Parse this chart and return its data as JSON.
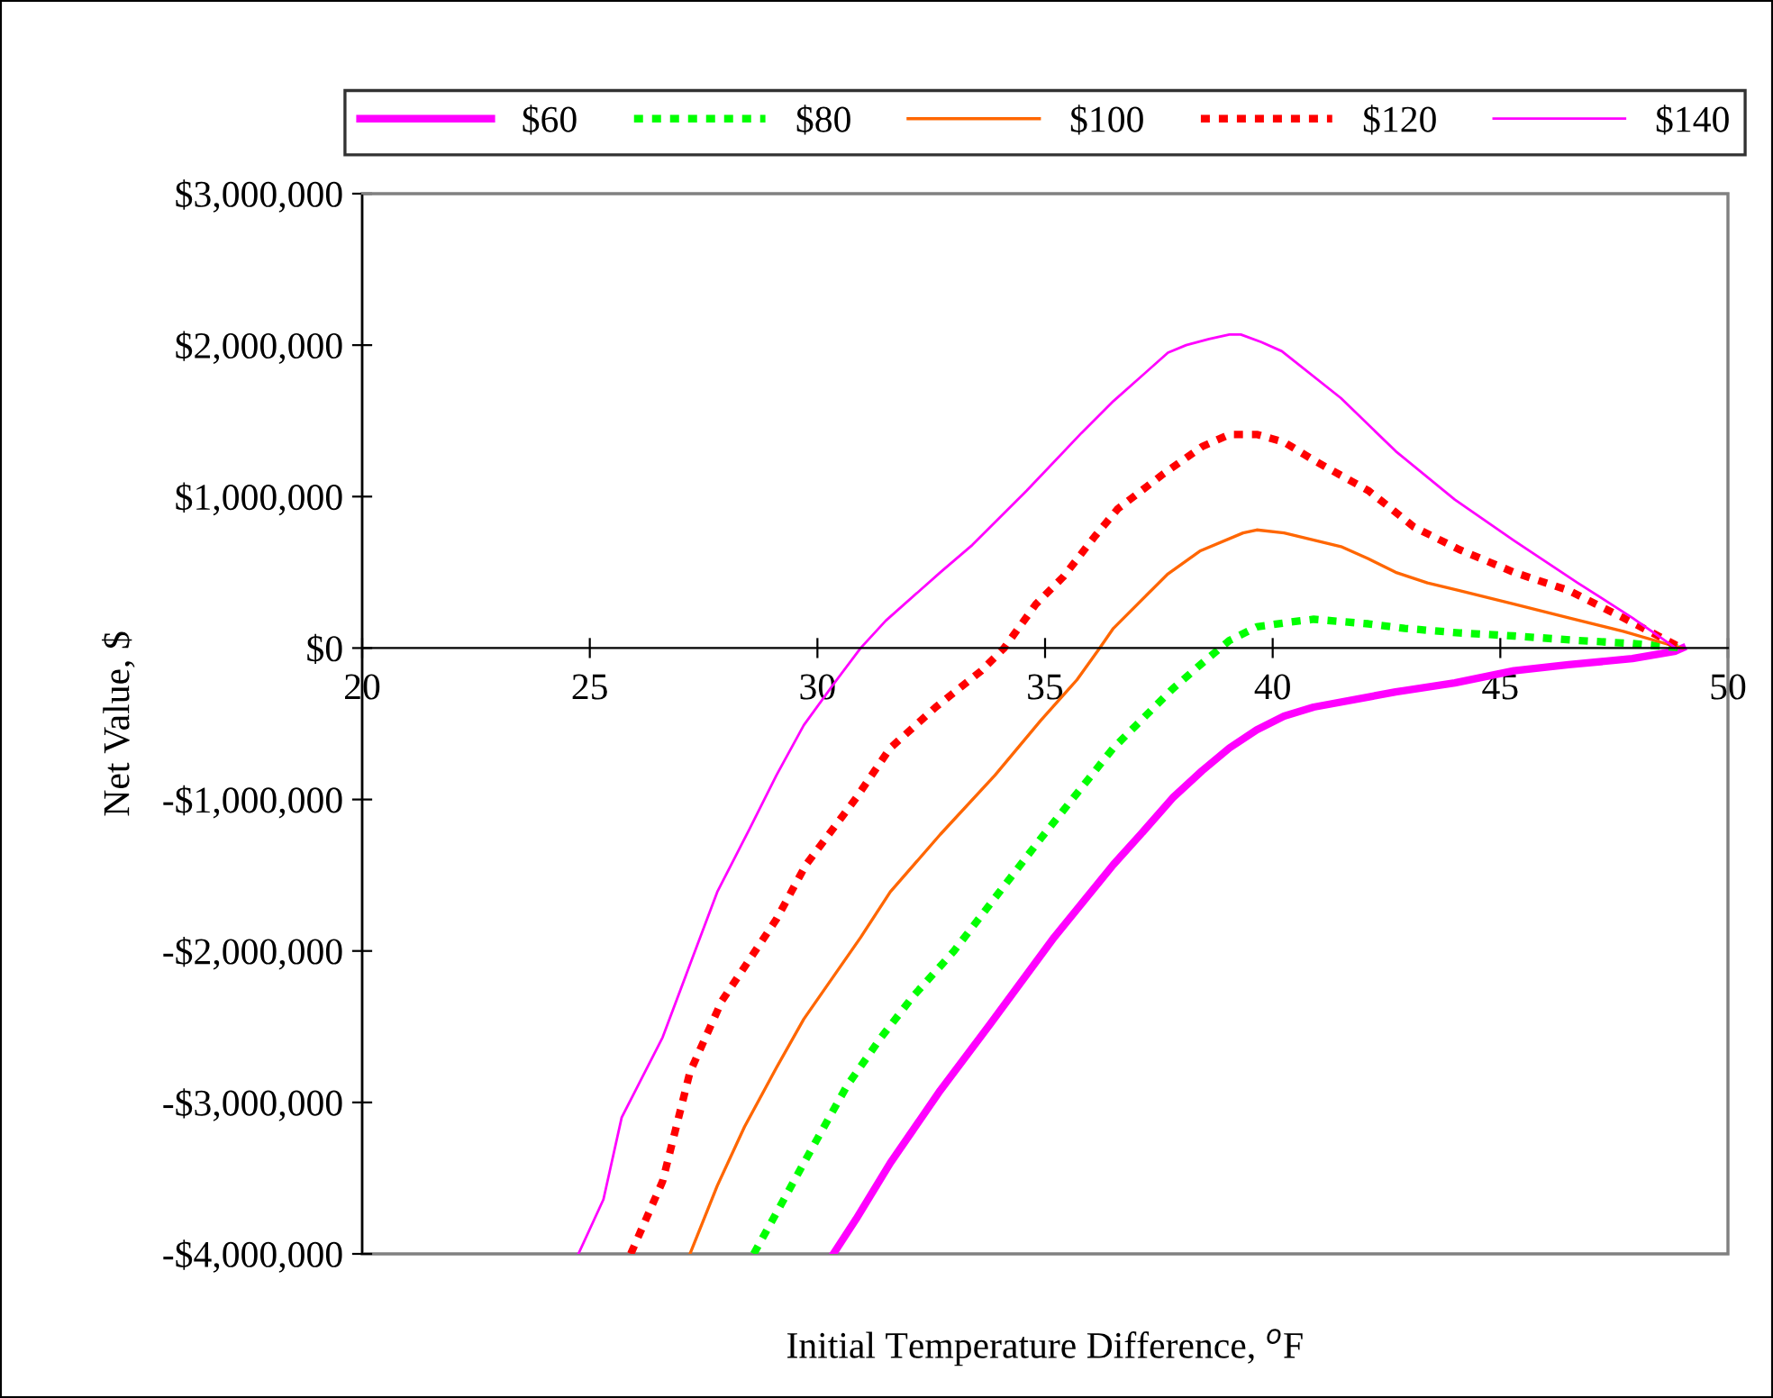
{
  "chart_data": {
    "type": "line",
    "xlabel": "Initial Temperature Difference, $^{o}$F",
    "ylabel": "Net Value, $",
    "xlim": [
      20,
      50
    ],
    "xticks": [
      20,
      25,
      30,
      35,
      40,
      45,
      50
    ],
    "ylim": [
      -4000000,
      3000000
    ],
    "yticks": [
      {
        "value": -4000000,
        "label": "-$4,000,000"
      },
      {
        "value": -3000000,
        "label": "-$3,000,000"
      },
      {
        "value": -2000000,
        "label": "-$2,000,000"
      },
      {
        "value": -1000000,
        "label": "-$1,000,000"
      },
      {
        "value": 0,
        "label": "$0"
      },
      {
        "value": 1000000,
        "label": "$1,000,000"
      },
      {
        "value": 2000000,
        "label": "$2,000,000"
      },
      {
        "value": 3000000,
        "label": "$3,000,000"
      }
    ],
    "grid": false,
    "legend": "top",
    "marker": "none",
    "series": [
      {
        "name": "$60",
        "color": "#ff00ff",
        "line_style": "solid",
        "x": [
          30.35,
          30.85,
          31.6,
          32.7,
          33.8,
          35.2,
          36.5,
          37.1,
          37.8,
          38.45,
          39.05,
          39.65,
          40.25,
          40.9,
          42.7,
          44.0,
          45.3,
          46.5,
          47.9,
          48.85,
          49.0
        ],
        "values": [
          -4000000,
          -3770000,
          -3400000,
          -2920000,
          -2480000,
          -1910000,
          -1430000,
          -1230000,
          -990000,
          -810000,
          -660000,
          -540000,
          -450000,
          -390000,
          -290000,
          -230000,
          -150000,
          -110000,
          -70000,
          -20000,
          0
        ]
      },
      {
        "name": "$80",
        "color": "#00ff00",
        "line_style": "dotted",
        "x": [
          28.6,
          29.1,
          29.7,
          30.65,
          31.4,
          32.1,
          33.0,
          34.0,
          34.9,
          35.7,
          36.5,
          37.0,
          37.8,
          38.45,
          39.05,
          39.65,
          40.35,
          40.9,
          42.1,
          42.9,
          44.1,
          45.3,
          46.7,
          47.9,
          49.0
        ],
        "values": [
          -4000000,
          -3730000,
          -3400000,
          -2890000,
          -2570000,
          -2300000,
          -2000000,
          -1610000,
          -1260000,
          -960000,
          -660000,
          -510000,
          -270000,
          -100000,
          50000,
          140000,
          170000,
          190000,
          160000,
          130000,
          100000,
          80000,
          50000,
          30000,
          0
        ]
      },
      {
        "name": "$100",
        "color": "#ff6600",
        "line_style": "solid",
        "x": [
          27.2,
          27.8,
          28.4,
          29.1,
          29.7,
          30.95,
          31.6,
          32.7,
          33.9,
          34.9,
          35.7,
          36.2,
          36.5,
          37.7,
          38.4,
          39.35,
          39.65,
          40.25,
          41.5,
          42.1,
          42.7,
          43.4,
          44.1,
          45.3,
          46.5,
          47.7,
          48.85,
          49.0
        ],
        "values": [
          -4000000,
          -3550000,
          -3160000,
          -2770000,
          -2450000,
          -1910000,
          -1610000,
          -1230000,
          -840000,
          -480000,
          -210000,
          0,
          130000,
          490000,
          640000,
          760000,
          780000,
          760000,
          670000,
          590000,
          500000,
          430000,
          380000,
          290000,
          200000,
          110000,
          10000,
          0
        ]
      },
      {
        "name": "$120",
        "color": "#ff0000",
        "line_style": "dotted",
        "x": [
          25.9,
          26.6,
          27.2,
          27.9,
          28.5,
          29.1,
          29.75,
          30.85,
          31.6,
          32.6,
          33.6,
          34.1,
          34.8,
          35.4,
          36.1,
          36.6,
          37.6,
          38.45,
          39.05,
          39.65,
          40.25,
          40.9,
          42.1,
          43.1,
          44.1,
          45.3,
          46.5,
          47.7,
          48.85,
          49.0
        ],
        "values": [
          -4000000,
          -3520000,
          -2800000,
          -2330000,
          -2060000,
          -1790000,
          -1430000,
          -990000,
          -660000,
          -390000,
          -150000,
          0,
          290000,
          470000,
          740000,
          920000,
          1150000,
          1330000,
          1410000,
          1410000,
          1360000,
          1240000,
          1040000,
          800000,
          650000,
          500000,
          380000,
          200000,
          20000,
          0
        ]
      },
      {
        "name": "$140",
        "color": "#ff00ff",
        "line_style": "solid",
        "x": [
          24.75,
          25.3,
          25.7,
          26.6,
          27.2,
          27.8,
          28.5,
          29.1,
          29.7,
          30.35,
          30.95,
          31.5,
          32.7,
          33.4,
          34.6,
          35.8,
          36.5,
          37.7,
          38.1,
          38.6,
          39.05,
          39.3,
          39.75,
          40.2,
          41.5,
          42.7,
          44.0,
          45.3,
          46.7,
          47.9,
          48.85
        ],
        "values": [
          -4000000,
          -3640000,
          -3100000,
          -2570000,
          -2090000,
          -1610000,
          -1200000,
          -840000,
          -510000,
          -240000,
          0,
          180000,
          500000,
          680000,
          1040000,
          1420000,
          1630000,
          1950000,
          2000000,
          2040000,
          2070000,
          2070000,
          2020000,
          1960000,
          1650000,
          1300000,
          980000,
          710000,
          430000,
          200000,
          0
        ]
      }
    ]
  }
}
